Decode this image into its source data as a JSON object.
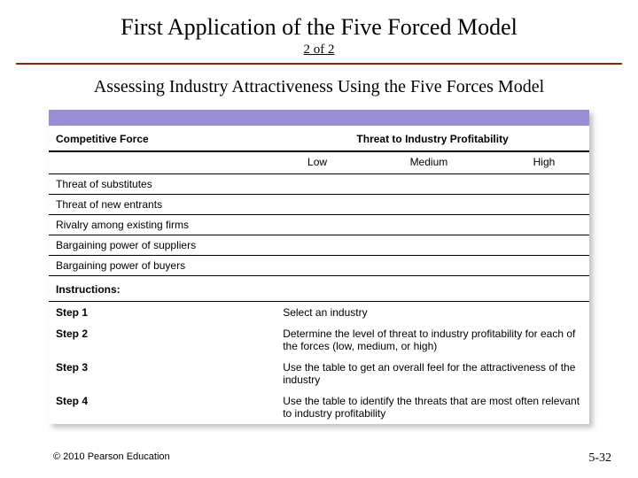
{
  "title": "First Application of the Five Forced Model",
  "pager": "2 of 2",
  "subtitle": "Assessing Industry Attractiveness Using the Five Forces Model",
  "colors": {
    "rule": "#8b2a00",
    "accent_bar": "#9a8fd6",
    "background": "#ffffff",
    "text": "#000000",
    "shadow": "rgba(0,0,0,0.25)"
  },
  "table": {
    "header_force": "Competitive Force",
    "header_threat": "Threat to Industry Profitability",
    "levels": [
      "Low",
      "Medium",
      "High"
    ],
    "forces": [
      "Threat of substitutes",
      "Threat of new entrants",
      "Rivalry among existing firms",
      "Bargaining power of suppliers",
      "Bargaining power of buyers"
    ],
    "instructions_label": "Instructions:",
    "steps": [
      {
        "label": "Step 1",
        "desc": "Select an industry"
      },
      {
        "label": "Step 2",
        "desc": "Determine the level of threat to industry profitability for each of the forces (low, medium, or high)"
      },
      {
        "label": "Step 3",
        "desc": "Use the table to get an overall feel for the attractiveness of the industry"
      },
      {
        "label": "Step 4",
        "desc": "Use the table to identify the threats that are most often relevant to industry profitability"
      }
    ]
  },
  "footer": {
    "copyright": "© 2010 Pearson Education",
    "pagenum": "5-32"
  }
}
